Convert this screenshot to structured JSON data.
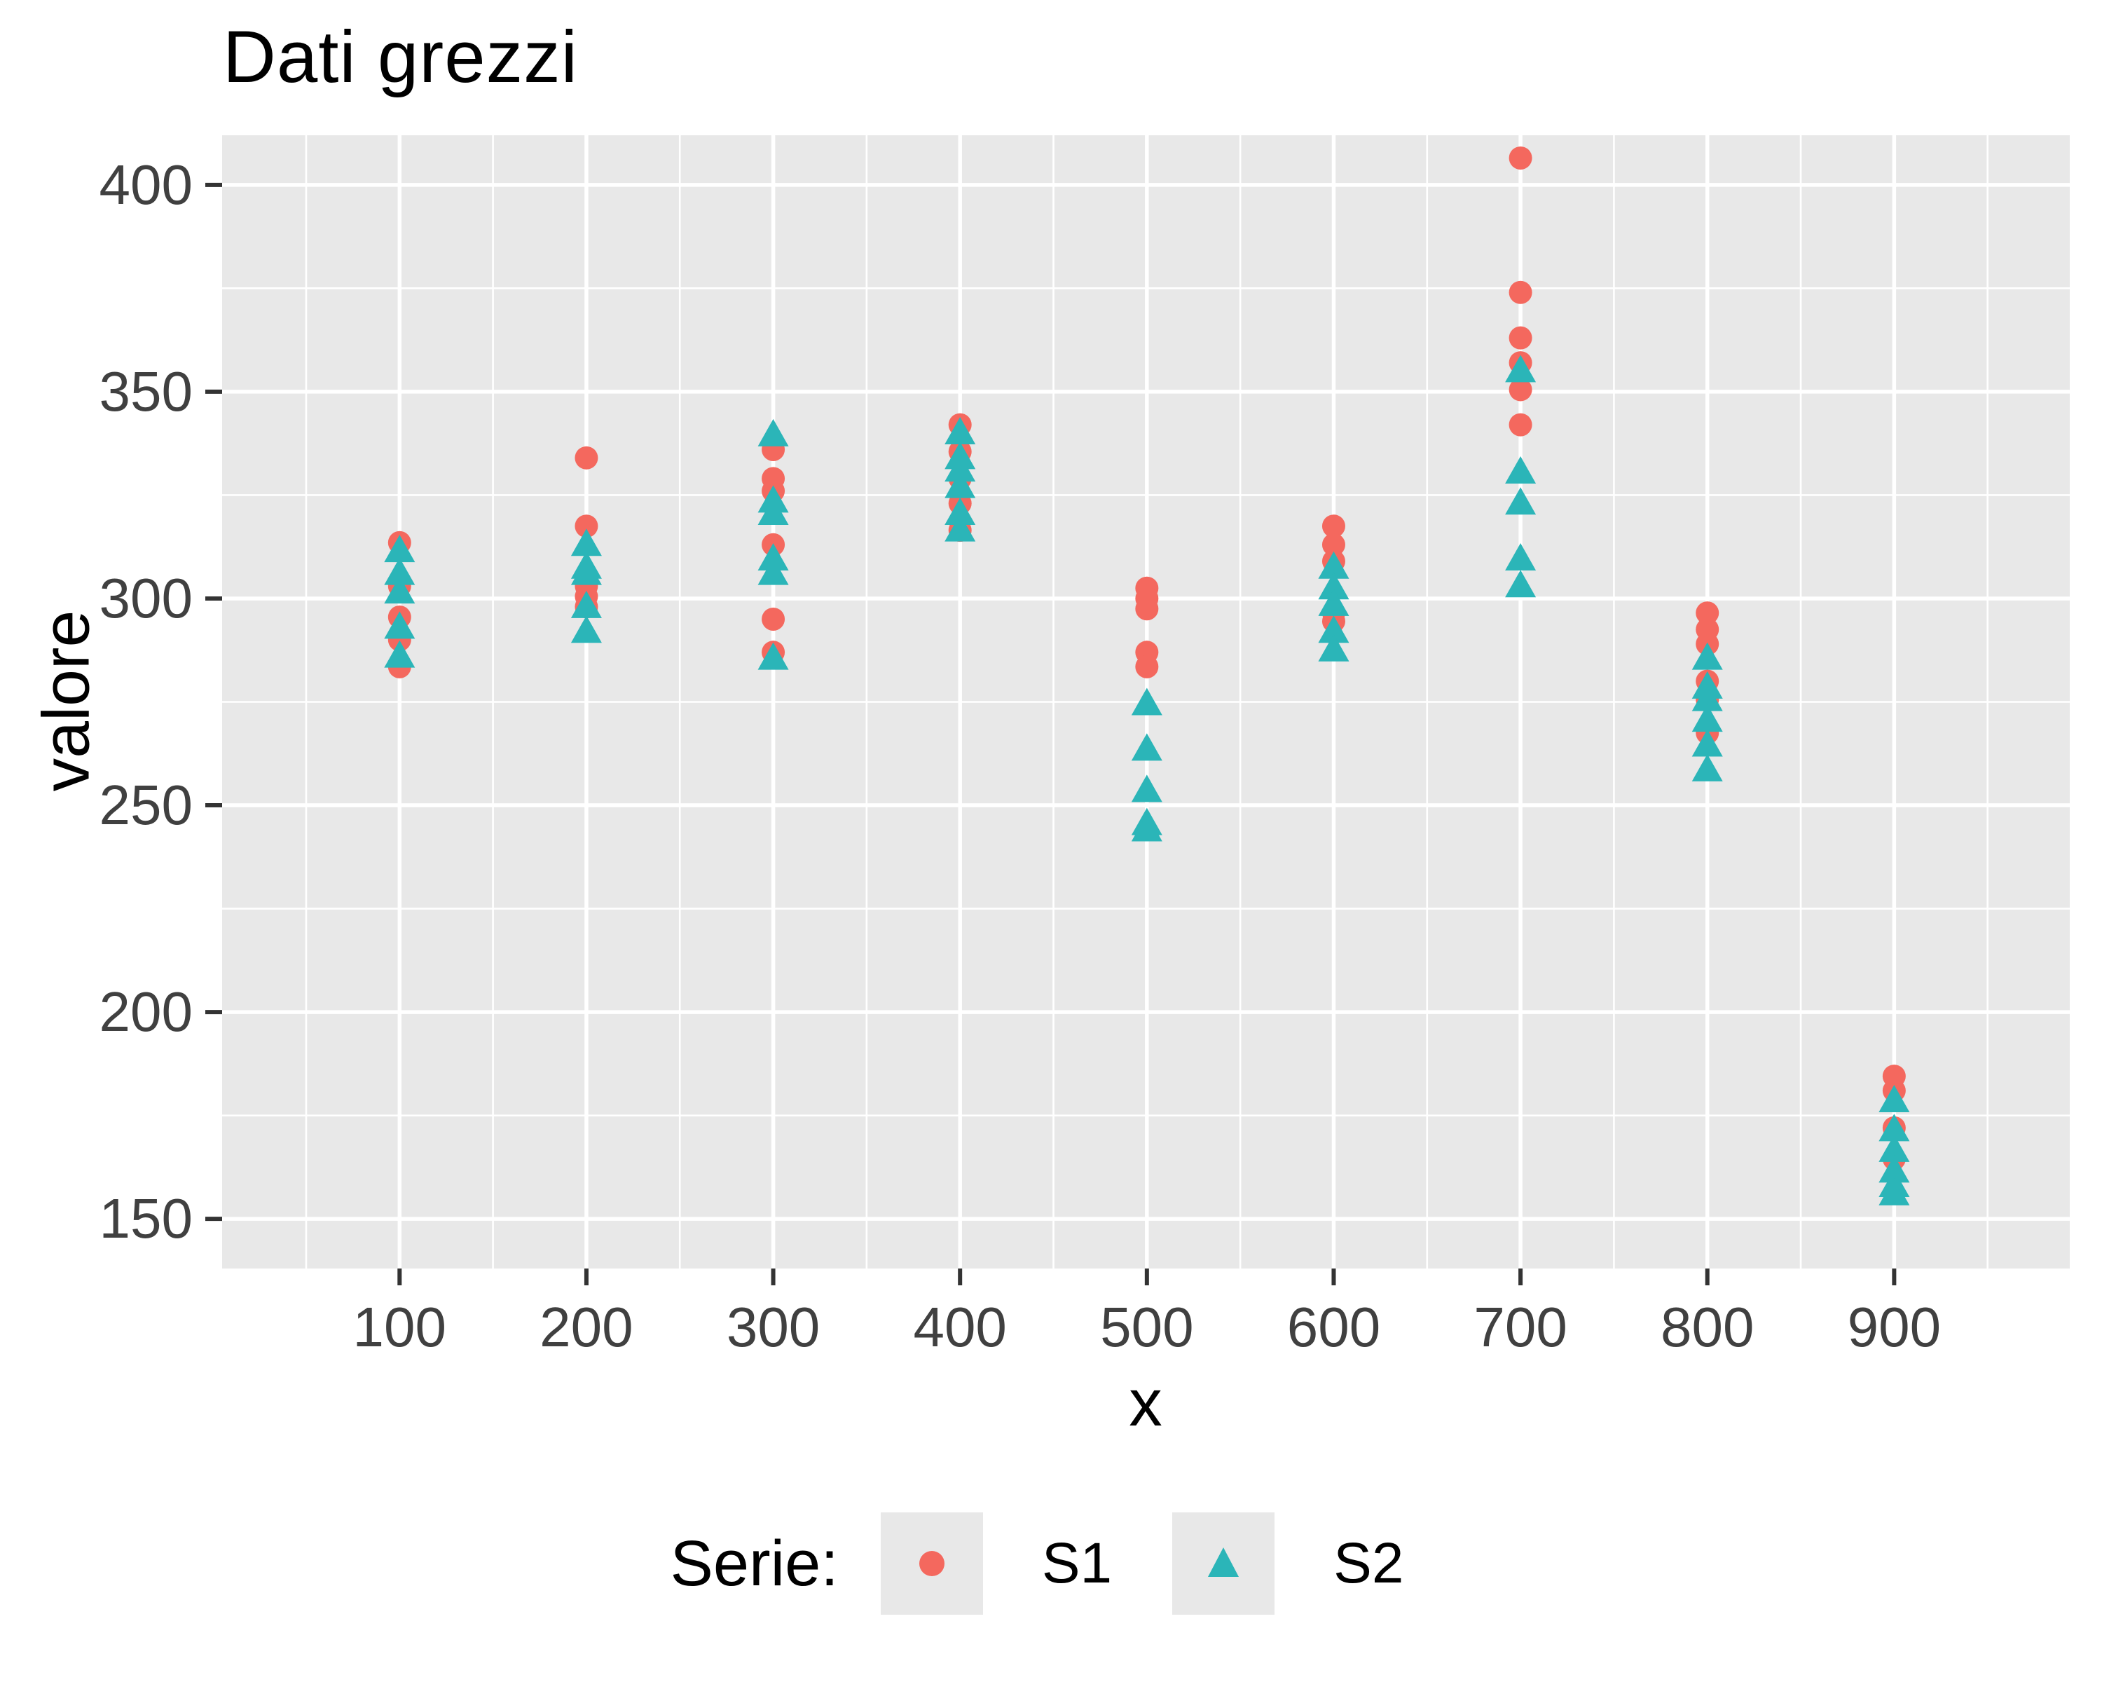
{
  "chart_data": {
    "type": "scatter",
    "title": "Dati grezzi",
    "xlabel": "x",
    "ylabel": "valore",
    "legend_title": "Serie:",
    "legend_position": "bottom",
    "grid": true,
    "x_ticks": [
      100,
      200,
      300,
      400,
      500,
      600,
      700,
      800,
      900
    ],
    "y_ticks": [
      150,
      200,
      250,
      300,
      350,
      400
    ],
    "x_minor_ticks": [
      50,
      150,
      250,
      350,
      450,
      550,
      650,
      750,
      850,
      950
    ],
    "y_minor_ticks": [
      175,
      225,
      275,
      325,
      375
    ],
    "xlim": [
      5,
      994
    ],
    "ylim": [
      138,
      412
    ],
    "series": [
      {
        "name": "S1",
        "marker": "circle",
        "color": "#F4685E",
        "x": [
          100,
          100,
          100,
          100,
          100,
          200,
          200,
          200,
          200,
          200,
          300,
          300,
          300,
          300,
          300,
          300,
          400,
          400,
          400,
          400,
          400,
          500,
          500,
          500,
          500,
          500,
          600,
          600,
          600,
          600,
          600,
          700,
          700,
          700,
          700,
          700,
          700,
          800,
          800,
          800,
          800,
          800,
          800,
          900,
          900,
          900,
          900
        ],
        "y": [
          313.5,
          303,
          295.5,
          290,
          283.5,
          334,
          317.5,
          303,
          300.5,
          298,
          336,
          329,
          326,
          313,
          295,
          287,
          342,
          335.5,
          329,
          323,
          316.5,
          302.5,
          300,
          297.5,
          287,
          283.5,
          317.5,
          313,
          309,
          296.5,
          294.5,
          406.5,
          374,
          363,
          357,
          350.5,
          342,
          296.5,
          292.5,
          289,
          280,
          275.5,
          267.5,
          184.5,
          181,
          172,
          164.5
        ]
      },
      {
        "name": "S2",
        "marker": "triangle",
        "color": "#2BB5B8",
        "x": [
          100,
          100,
          100,
          100,
          100,
          200,
          200,
          200,
          200,
          200,
          300,
          300,
          300,
          300,
          300,
          300,
          400,
          400,
          400,
          400,
          400,
          400,
          500,
          500,
          500,
          500,
          500,
          600,
          600,
          600,
          600,
          600,
          700,
          700,
          700,
          700,
          700,
          800,
          800,
          800,
          800,
          800,
          800,
          900,
          900,
          900,
          900,
          900,
          900
        ],
        "y": [
          312,
          306.5,
          302,
          293.5,
          286.5,
          313.5,
          308,
          306.5,
          298.5,
          292.5,
          340,
          324,
          321,
          310,
          306.5,
          286,
          340.5,
          334.5,
          331.5,
          327.5,
          321,
          317,
          275,
          264,
          254,
          246,
          244.5,
          308,
          303,
          299,
          292.5,
          288,
          355.5,
          331,
          323.5,
          310,
          303.5,
          286,
          279,
          276,
          271,
          265,
          259,
          179,
          172,
          167,
          162,
          158.5,
          156.5
        ]
      }
    ]
  },
  "colors": {
    "panel_background": "#E8E8E8",
    "grid_line": "#FFFFFF",
    "tick_mark": "#333333",
    "tick_text": "#404040",
    "legend_key_background": "#E8E8E8",
    "series_s1": "#F4685E",
    "series_s2": "#2BB5B8"
  }
}
